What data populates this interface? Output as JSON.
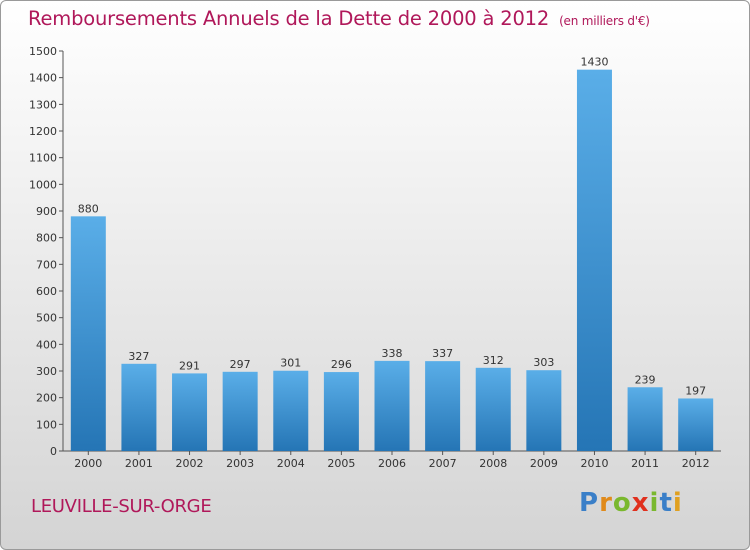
{
  "title": "Remboursements Annuels de la Dette de 2000 à 2012",
  "subtitle": "(en milliers d'€)",
  "town": "LEUVILLE-SUR-ORGE",
  "logo": {
    "letters": [
      "P",
      "r",
      "o",
      "x",
      "i",
      "t",
      "i"
    ],
    "colors": [
      "#3a7fc8",
      "#e08a1a",
      "#7ab82e",
      "#e0301e",
      "#7ab82e",
      "#3a7fc8",
      "#e0a020"
    ]
  },
  "colors": {
    "bar_light": "#5aaee8",
    "bar_dark": "#2575b5",
    "title": "#b0185a"
  },
  "chart_data": {
    "type": "bar",
    "categories": [
      "2000",
      "2001",
      "2002",
      "2003",
      "2004",
      "2005",
      "2006",
      "2007",
      "2008",
      "2009",
      "2010",
      "2011",
      "2012"
    ],
    "values": [
      880,
      327,
      291,
      297,
      301,
      296,
      338,
      337,
      312,
      303,
      1430,
      239,
      197
    ],
    "ylim": [
      0,
      1500
    ],
    "yticks": [
      0,
      100,
      200,
      300,
      400,
      500,
      600,
      700,
      800,
      900,
      1000,
      1100,
      1200,
      1300,
      1400,
      1500
    ],
    "grid": false,
    "legend": "none"
  }
}
